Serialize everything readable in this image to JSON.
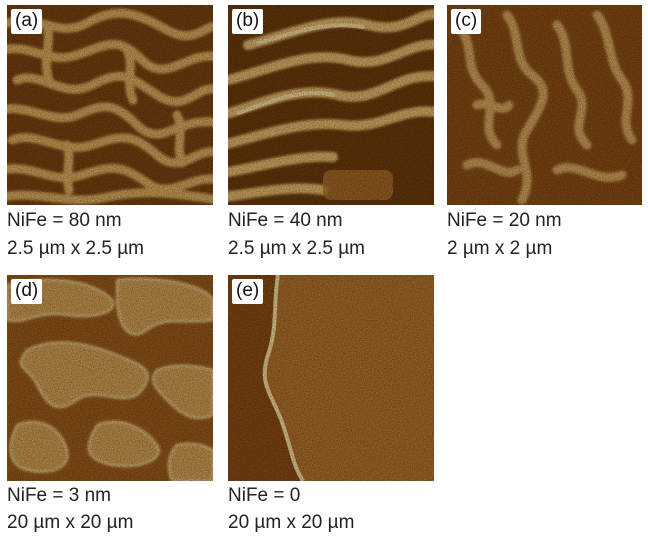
{
  "panels": [
    {
      "label": "(a)",
      "line1": "NiFe = 80 nm",
      "line2": "2.5 µm x 2.5 µm"
    },
    {
      "label": "(b)",
      "line1": "NiFe = 40 nm",
      "line2": "2.5 µm x 2.5 µm"
    },
    {
      "label": "(c)",
      "line1": "NiFe = 20 nm",
      "line2": "2 µm x 2 µm"
    },
    {
      "label": "(d)",
      "line1": "NiFe = 3 nm",
      "line2": "20 µm x 20 µm"
    },
    {
      "label": "(e)",
      "line1": "NiFe = 0",
      "line2": "20 µm x 20 µm"
    }
  ],
  "colors": {
    "dark": "#6a3608",
    "mid": "#a5651f",
    "light": "#e0b267",
    "highlight": "#f6dc9c"
  }
}
